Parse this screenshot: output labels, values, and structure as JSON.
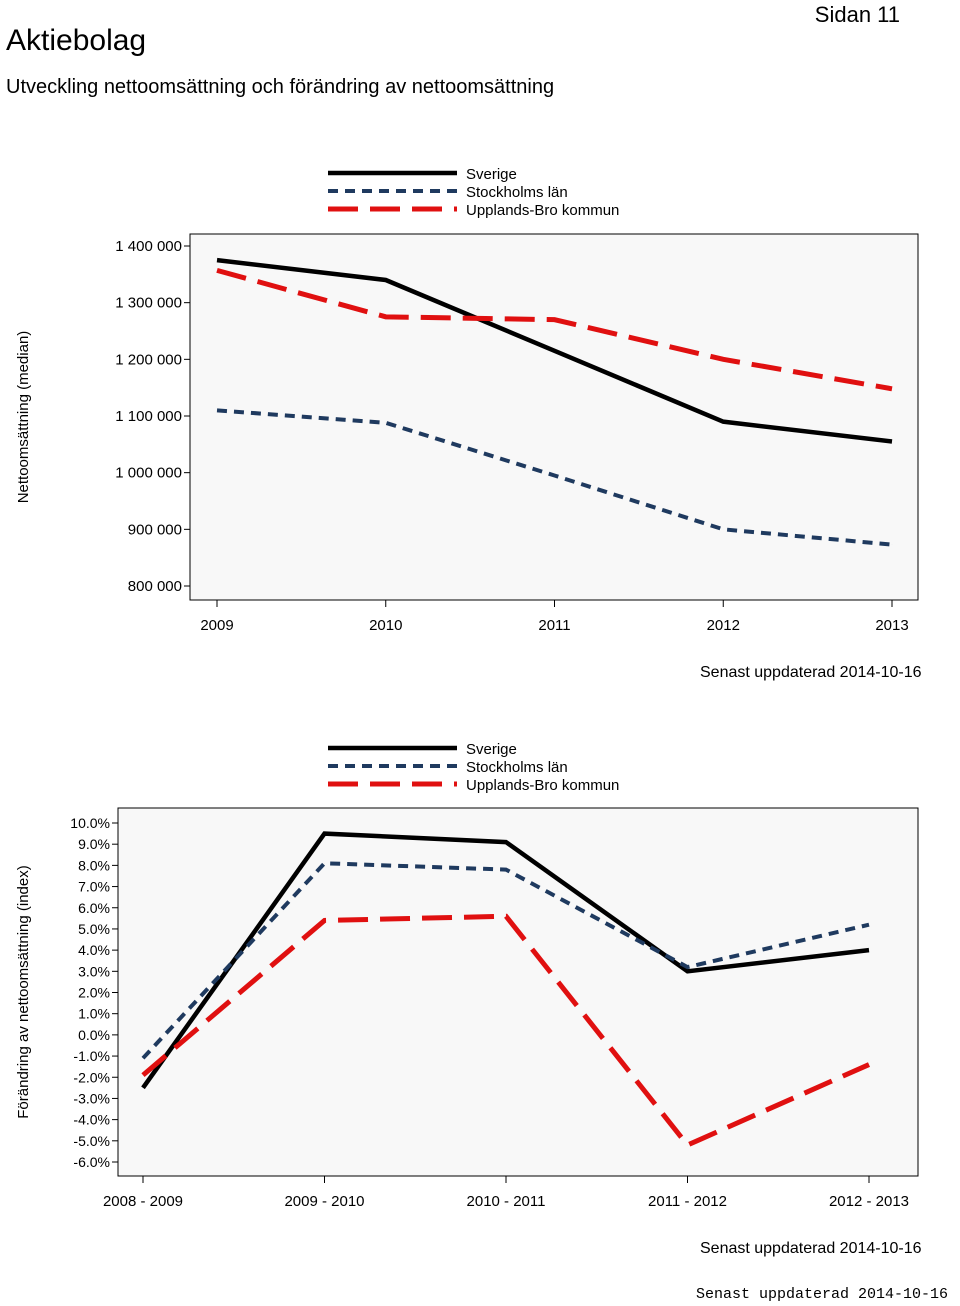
{
  "header": {
    "title": "Aktiebolag",
    "page": "Sidan 11",
    "subtitle": "Utveckling nettoomsättning och förändring av nettoomsättning"
  },
  "colors": {
    "sverige": "#000000",
    "stockholm": "#1f3a5f",
    "upplandsbro": "#e01010",
    "plot_bg": "#f8f8f8"
  },
  "legend": [
    "Sverige",
    "Stockholms län",
    "Upplands-Bro kommun"
  ],
  "chart_data": [
    {
      "type": "line",
      "title": "",
      "ylabel": "Nettoomsättning (median)",
      "xlabel": "",
      "categories": [
        "2009",
        "2010",
        "2011",
        "2012",
        "2013"
      ],
      "ylim": [
        800000,
        1400000
      ],
      "yticks": [
        {
          "value": 1400000,
          "label": "1 400 000"
        },
        {
          "value": 1300000,
          "label": "1 300 000"
        },
        {
          "value": 1200000,
          "label": "1 200 000"
        },
        {
          "value": 1100000,
          "label": "1 100 000"
        },
        {
          "value": 1000000,
          "label": "1 000 000"
        },
        {
          "value": 900000,
          "label": "900 000"
        },
        {
          "value": 800000,
          "label": "800 000"
        }
      ],
      "series": [
        {
          "name": "Sverige",
          "values": [
            1375000,
            1340000,
            1215000,
            1090000,
            1055000
          ]
        },
        {
          "name": "Stockholms län",
          "values": [
            1110000,
            1088000,
            995000,
            900000,
            873000
          ]
        },
        {
          "name": "Upplands-Bro kommun",
          "values": [
            1357000,
            1275000,
            1270000,
            1200000,
            1148000
          ]
        }
      ],
      "updated": "Senast uppdaterad 2014-10-16"
    },
    {
      "type": "line",
      "title": "",
      "ylabel": "Förändring av nettoomsättning (index)",
      "xlabel": "",
      "categories": [
        "2008 - 2009",
        "2009 - 2010",
        "2010 - 2011",
        "2011 - 2012",
        "2012 - 2013"
      ],
      "ylim": [
        -6.0,
        10.0
      ],
      "yticks": [
        {
          "value": 10,
          "label": "10.0%"
        },
        {
          "value": 9,
          "label": "9.0%"
        },
        {
          "value": 8,
          "label": "8.0%"
        },
        {
          "value": 7,
          "label": "7.0%"
        },
        {
          "value": 6,
          "label": "6.0%"
        },
        {
          "value": 5,
          "label": "5.0%"
        },
        {
          "value": 4,
          "label": "4.0%"
        },
        {
          "value": 3,
          "label": "3.0%"
        },
        {
          "value": 2,
          "label": "2.0%"
        },
        {
          "value": 1,
          "label": "1.0%"
        },
        {
          "value": 0,
          "label": "0.0%"
        },
        {
          "value": -1,
          "label": "-1.0%"
        },
        {
          "value": -2,
          "label": "-2.0%"
        },
        {
          "value": -3,
          "label": "-3.0%"
        },
        {
          "value": -4,
          "label": "-4.0%"
        },
        {
          "value": -5,
          "label": "-5.0%"
        },
        {
          "value": -6,
          "label": "-6.0%"
        }
      ],
      "series": [
        {
          "name": "Sverige",
          "values": [
            -2.5,
            9.5,
            9.1,
            3.0,
            4.0
          ]
        },
        {
          "name": "Stockholms län",
          "values": [
            -1.1,
            8.1,
            7.8,
            3.2,
            5.2
          ]
        },
        {
          "name": "Upplands-Bro kommun",
          "values": [
            -1.9,
            5.4,
            5.6,
            -5.2,
            -1.4
          ]
        }
      ],
      "updated": "Senast uppdaterad 2014-10-16"
    }
  ],
  "footer": "Senast uppdaterad 2014-10-16"
}
